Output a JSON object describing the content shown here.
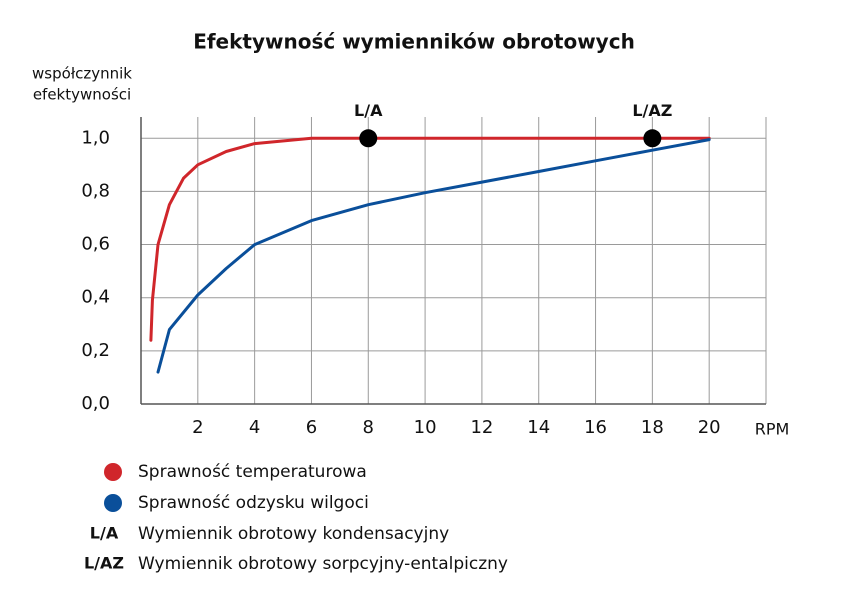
{
  "chart_data": {
    "type": "line",
    "title": "Efektywność wymienników obrotowych",
    "ylabel": [
      "współczynnik",
      "efektywności"
    ],
    "xlabel": "RPM",
    "xlim": [
      0,
      22
    ],
    "xticks": [
      2,
      4,
      6,
      8,
      10,
      12,
      14,
      16,
      18,
      20
    ],
    "ylim": [
      0,
      1.08
    ],
    "yticks": [
      {
        "value": 0,
        "label": "0,0"
      },
      {
        "value": 0.2,
        "label": "0,2"
      },
      {
        "value": 0.4,
        "label": "0,4"
      },
      {
        "value": 0.6,
        "label": "0,6"
      },
      {
        "value": 0.8,
        "label": "0,8"
      },
      {
        "value": 1.0,
        "label": "1,0"
      }
    ],
    "grid": true,
    "series": [
      {
        "name": "Sprawność temperaturowa",
        "color": "#d0262b",
        "x": [
          0.35,
          0.4,
          0.6,
          1,
          1.5,
          2,
          3,
          4,
          6,
          8,
          10,
          12,
          14,
          16,
          18,
          20
        ],
        "values": [
          0.24,
          0.39,
          0.6,
          0.75,
          0.85,
          0.9,
          0.95,
          0.98,
          1.0,
          1.0,
          1.0,
          1.0,
          1.0,
          1.0,
          1.0,
          1.0
        ]
      },
      {
        "name": "Sprawność odzysku wilgoci",
        "color": "#0a4f9a",
        "x": [
          0.6,
          1,
          2,
          3,
          4,
          6,
          8,
          10,
          12,
          14,
          16,
          18,
          20
        ],
        "values": [
          0.12,
          0.28,
          0.41,
          0.51,
          0.6,
          0.69,
          0.75,
          0.795,
          0.835,
          0.875,
          0.915,
          0.955,
          0.995
        ]
      }
    ],
    "markers": [
      {
        "label": "L/A",
        "x": 8,
        "y": 1.0,
        "description": "Wymiennik obrotowy kondensacyjny"
      },
      {
        "label": "L/AZ",
        "x": 18,
        "y": 1.0,
        "description": "Wymiennik obrotowy sorpcyjny-entalpiczny"
      }
    ]
  }
}
